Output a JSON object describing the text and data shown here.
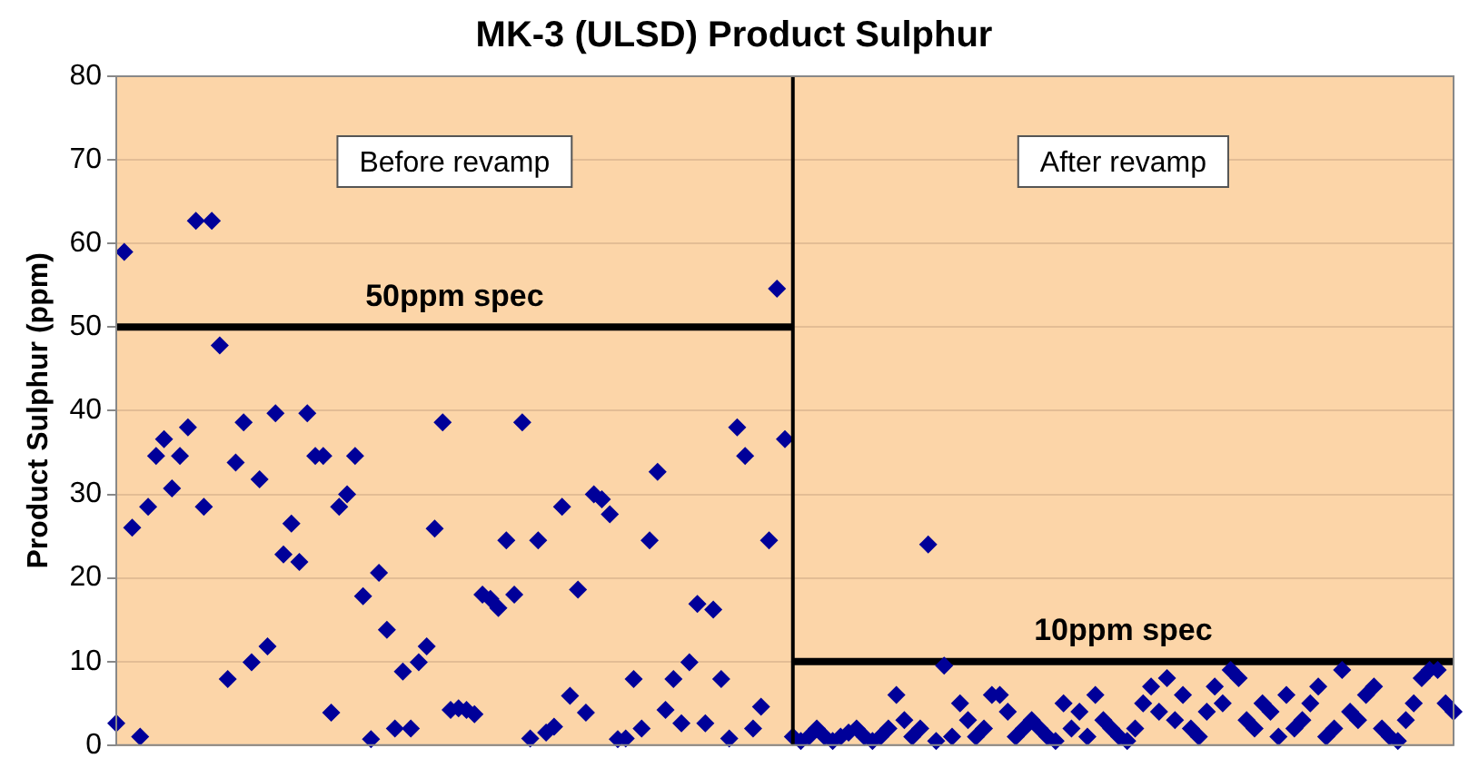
{
  "chart_data": {
    "type": "scatter",
    "title": "MK-3 (ULSD) Product Sulphur",
    "ylabel": "Product Sulphur (ppm)",
    "categories": [
      null,
      null,
      null,
      null,
      null,
      null,
      null,
      null,
      null,
      null,
      null,
      null,
      null,
      null,
      null,
      null,
      null,
      null,
      null,
      null,
      null,
      null,
      null,
      null,
      null,
      null,
      null,
      null,
      null,
      null,
      null,
      null,
      null,
      null,
      null,
      null,
      null,
      null,
      null,
      null,
      null,
      null,
      null,
      null,
      null,
      null,
      null,
      null,
      null,
      null,
      null,
      null,
      null,
      null,
      null,
      null,
      null,
      null,
      null,
      null,
      null,
      null,
      null,
      null,
      null,
      null,
      null,
      null,
      null,
      null,
      null,
      null,
      null,
      null,
      null,
      null,
      null,
      null,
      null,
      null,
      null,
      null,
      null,
      null,
      null,
      null,
      null,
      null,
      null,
      null,
      null,
      null,
      null,
      null,
      null,
      null,
      null,
      null,
      null,
      null,
      null,
      null,
      null,
      null,
      null,
      null,
      null,
      null,
      null,
      null,
      null,
      null,
      null,
      null,
      null,
      null,
      null,
      null,
      null,
      null,
      null,
      null,
      null,
      null,
      null,
      null,
      null,
      null,
      null,
      null,
      null,
      null,
      null,
      null,
      null,
      null,
      null,
      null,
      null,
      null,
      null,
      null,
      null,
      null,
      null,
      null,
      null,
      null,
      null,
      null,
      null,
      null,
      null,
      null,
      null,
      null,
      null,
      null,
      null,
      null,
      null,
      null,
      null,
      null,
      null,
      null,
      null,
      null,
      null
    ],
    "ylim": [
      0,
      80
    ],
    "yticks": [
      0,
      10,
      20,
      30,
      40,
      50,
      60,
      70,
      80
    ],
    "grid": "y",
    "legend": false,
    "tick_labels": "y",
    "annotations": [
      "Before revamp",
      "After revamp"
    ],
    "series": [
      {
        "color": "#000099",
        "marker": "diamond",
        "values": [
          2.6,
          59,
          26,
          1,
          28.5,
          34.6,
          36.6,
          30.7,
          34.6,
          38,
          62.7,
          28.5,
          62.7,
          47.8,
          7.9,
          33.8,
          38.6,
          9.9,
          31.8,
          11.8,
          39.7,
          22.8,
          26.5,
          21.9,
          39.7,
          34.6,
          34.6,
          3.9,
          28.5,
          30,
          34.6,
          17.8,
          0.7,
          20.6,
          13.8,
          2,
          8.8,
          2,
          9.9,
          11.8,
          25.9,
          38.6,
          4.2,
          4.4,
          4.2,
          3.7,
          18,
          17.5,
          16.4,
          24.5,
          18,
          38.6,
          0.8,
          24.5,
          1.5,
          2.2,
          28.5,
          5.9,
          18.6,
          3.9,
          30,
          29.4,
          27.6,
          0.7,
          0.8,
          7.9,
          2,
          24.5,
          32.7,
          4.2,
          7.9,
          2.6,
          9.9,
          16.9,
          2.6,
          16.2,
          7.9,
          0.8,
          38,
          34.6,
          2,
          4.6,
          24.5,
          54.6,
          36.6,
          1,
          0.5,
          1,
          2,
          1,
          0.5,
          1,
          1.5,
          2,
          1,
          0.5,
          1,
          2,
          6,
          3,
          1,
          2,
          24,
          0.5,
          9.5,
          1,
          5,
          3,
          1,
          2,
          6,
          6,
          4,
          1,
          2,
          3,
          2,
          1,
          0.5,
          5,
          2,
          4,
          1,
          6,
          3,
          2,
          1,
          0.5,
          2,
          5,
          7,
          4,
          8,
          3,
          6,
          2,
          1,
          4,
          7,
          5,
          9,
          8,
          3,
          2,
          5,
          4,
          1,
          6,
          2,
          3,
          5,
          7,
          1,
          2,
          9,
          4,
          3,
          6,
          7,
          2,
          1,
          0.5,
          3,
          5,
          8,
          9,
          9,
          5,
          4
        ]
      },
      {
        "type": "line",
        "name": "50ppm spec",
        "color": "#000000",
        "marker": "none",
        "values": [
          50,
          50,
          50,
          50,
          50,
          50,
          50,
          50,
          50,
          50,
          50,
          50,
          50,
          50,
          50,
          50,
          50,
          50,
          50,
          50,
          50,
          50,
          50,
          50,
          50,
          50,
          50,
          50,
          50,
          50,
          50,
          50,
          50,
          50,
          50,
          50,
          50,
          50,
          50,
          50,
          50,
          50,
          50,
          50,
          50,
          50,
          50,
          50,
          50,
          50,
          50,
          50,
          50,
          50,
          50,
          50,
          50,
          50,
          50,
          50,
          50,
          50,
          50,
          50,
          50,
          50,
          50,
          50,
          50,
          50,
          50,
          50,
          50,
          50,
          50,
          50,
          50,
          50,
          50,
          50,
          50,
          50,
          50,
          50,
          50,
          50,
          null,
          null,
          null,
          null,
          null,
          null,
          null,
          null,
          null,
          null,
          null,
          null,
          null,
          null,
          null,
          null,
          null,
          null,
          null,
          null,
          null,
          null,
          null,
          null,
          null,
          null,
          null,
          null,
          null,
          null,
          null,
          null,
          null,
          null,
          null,
          null,
          null,
          null,
          null,
          null,
          null,
          null,
          null,
          null,
          null,
          null,
          null,
          null,
          null,
          null,
          null,
          null,
          null,
          null,
          null,
          null,
          null,
          null,
          null,
          null,
          null,
          null,
          null,
          null,
          null,
          null,
          null,
          null,
          null,
          null,
          null,
          null,
          null,
          null,
          null,
          null,
          null,
          null,
          null,
          null,
          null,
          null,
          null
        ]
      },
      {
        "type": "line",
        "name": "10ppm spec",
        "color": "#000000",
        "marker": "none",
        "values": [
          null,
          null,
          null,
          null,
          null,
          null,
          null,
          null,
          null,
          null,
          null,
          null,
          null,
          null,
          null,
          null,
          null,
          null,
          null,
          null,
          null,
          null,
          null,
          null,
          null,
          null,
          null,
          null,
          null,
          null,
          null,
          null,
          null,
          null,
          null,
          null,
          null,
          null,
          null,
          null,
          null,
          null,
          null,
          null,
          null,
          null,
          null,
          null,
          null,
          null,
          null,
          null,
          null,
          null,
          null,
          null,
          null,
          null,
          null,
          null,
          null,
          null,
          null,
          null,
          null,
          null,
          null,
          null,
          null,
          null,
          null,
          null,
          null,
          null,
          null,
          null,
          null,
          null,
          null,
          null,
          null,
          null,
          null,
          null,
          null,
          10,
          10,
          10,
          10,
          10,
          10,
          10,
          10,
          10,
          10,
          10,
          10,
          10,
          10,
          10,
          10,
          10,
          10,
          10,
          10,
          10,
          10,
          10,
          10,
          10,
          10,
          10,
          10,
          10,
          10,
          10,
          10,
          10,
          10,
          10,
          10,
          10,
          10,
          10,
          10,
          10,
          10,
          10,
          10,
          10,
          10,
          10,
          10,
          10,
          10,
          10,
          10,
          10,
          10,
          10,
          10,
          10,
          10,
          10,
          10,
          10,
          10,
          10,
          10,
          10,
          10,
          10,
          10,
          10,
          10,
          10,
          10,
          10,
          10,
          10,
          10,
          10,
          10,
          10,
          10,
          10,
          10,
          10,
          10
        ]
      }
    ]
  }
}
